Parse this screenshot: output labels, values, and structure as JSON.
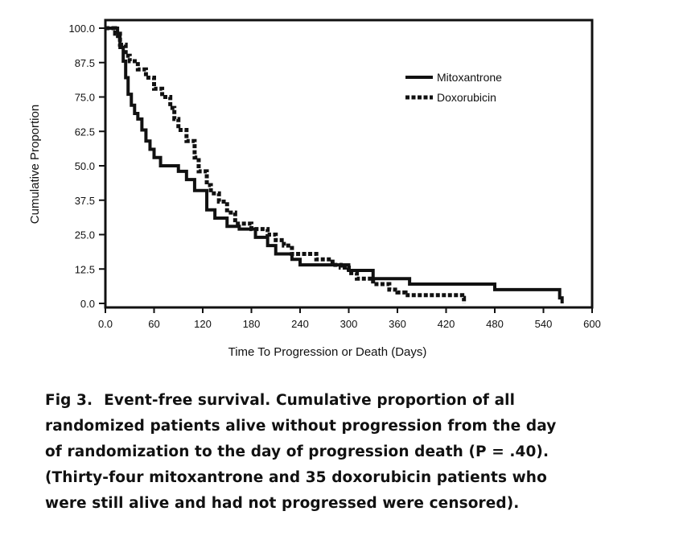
{
  "chart_data": {
    "type": "line",
    "subtype": "kaplan-meier step",
    "xlabel": "Time To Progression or Death (Days)",
    "ylabel": "Cumulative Proportion",
    "xlim": [
      0,
      600
    ],
    "ylim": [
      0,
      100
    ],
    "x_ticks": [
      "0.0",
      "60",
      "120",
      "180",
      "240",
      "300",
      "360",
      "420",
      "480",
      "540",
      "600"
    ],
    "y_ticks": [
      "100.0",
      "87.5",
      "75.0",
      "62.5",
      "50.0",
      "37.5",
      "25.0",
      "12.5",
      "0.0"
    ],
    "grid": false,
    "legend_position": "top-right",
    "series": [
      {
        "name": "Mitoxantrone",
        "line_style": "solid",
        "color": "#111111",
        "x": [
          0,
          15,
          18,
          22,
          25,
          28,
          32,
          36,
          40,
          45,
          50,
          55,
          60,
          68,
          75,
          90,
          100,
          110,
          125,
          135,
          150,
          165,
          185,
          200,
          210,
          230,
          240,
          260,
          300,
          330,
          375,
          480,
          560,
          563
        ],
        "y": [
          100,
          97,
          93,
          88,
          82,
          76,
          72,
          69,
          67,
          63,
          59,
          56,
          53,
          50,
          50,
          48,
          45,
          41,
          34,
          31,
          28,
          27,
          24,
          21,
          18,
          16,
          14,
          14,
          12,
          9,
          7,
          5,
          2,
          0
        ]
      },
      {
        "name": "Doxorubicin",
        "line_style": "dashed",
        "color": "#111111",
        "x": [
          0,
          12,
          18,
          25,
          30,
          40,
          50,
          60,
          70,
          80,
          85,
          90,
          100,
          110,
          115,
          125,
          130,
          140,
          150,
          160,
          180,
          200,
          210,
          220,
          230,
          260,
          280,
          290,
          300,
          310,
          330,
          350,
          360,
          370,
          440,
          442
        ],
        "y": [
          100,
          98,
          94,
          90,
          88,
          85,
          82,
          78,
          75,
          71,
          67,
          63,
          59,
          53,
          48,
          43,
          40,
          37,
          33,
          29,
          27,
          25,
          23,
          21,
          18,
          16,
          14,
          13,
          11,
          9,
          7,
          5,
          4,
          3,
          2,
          0
        ]
      }
    ]
  },
  "caption": {
    "label": "Fig 3.",
    "lines": [
      "Event-free survival. Cumulative proportion of all",
      "randomized patients alive without progression from the day",
      "of randomization to the day of progression death (P = .40).",
      "(Thirty-four mitoxantrone and 35 doxorubicin patients who",
      "were still alive and had not progressed were censored)."
    ]
  }
}
